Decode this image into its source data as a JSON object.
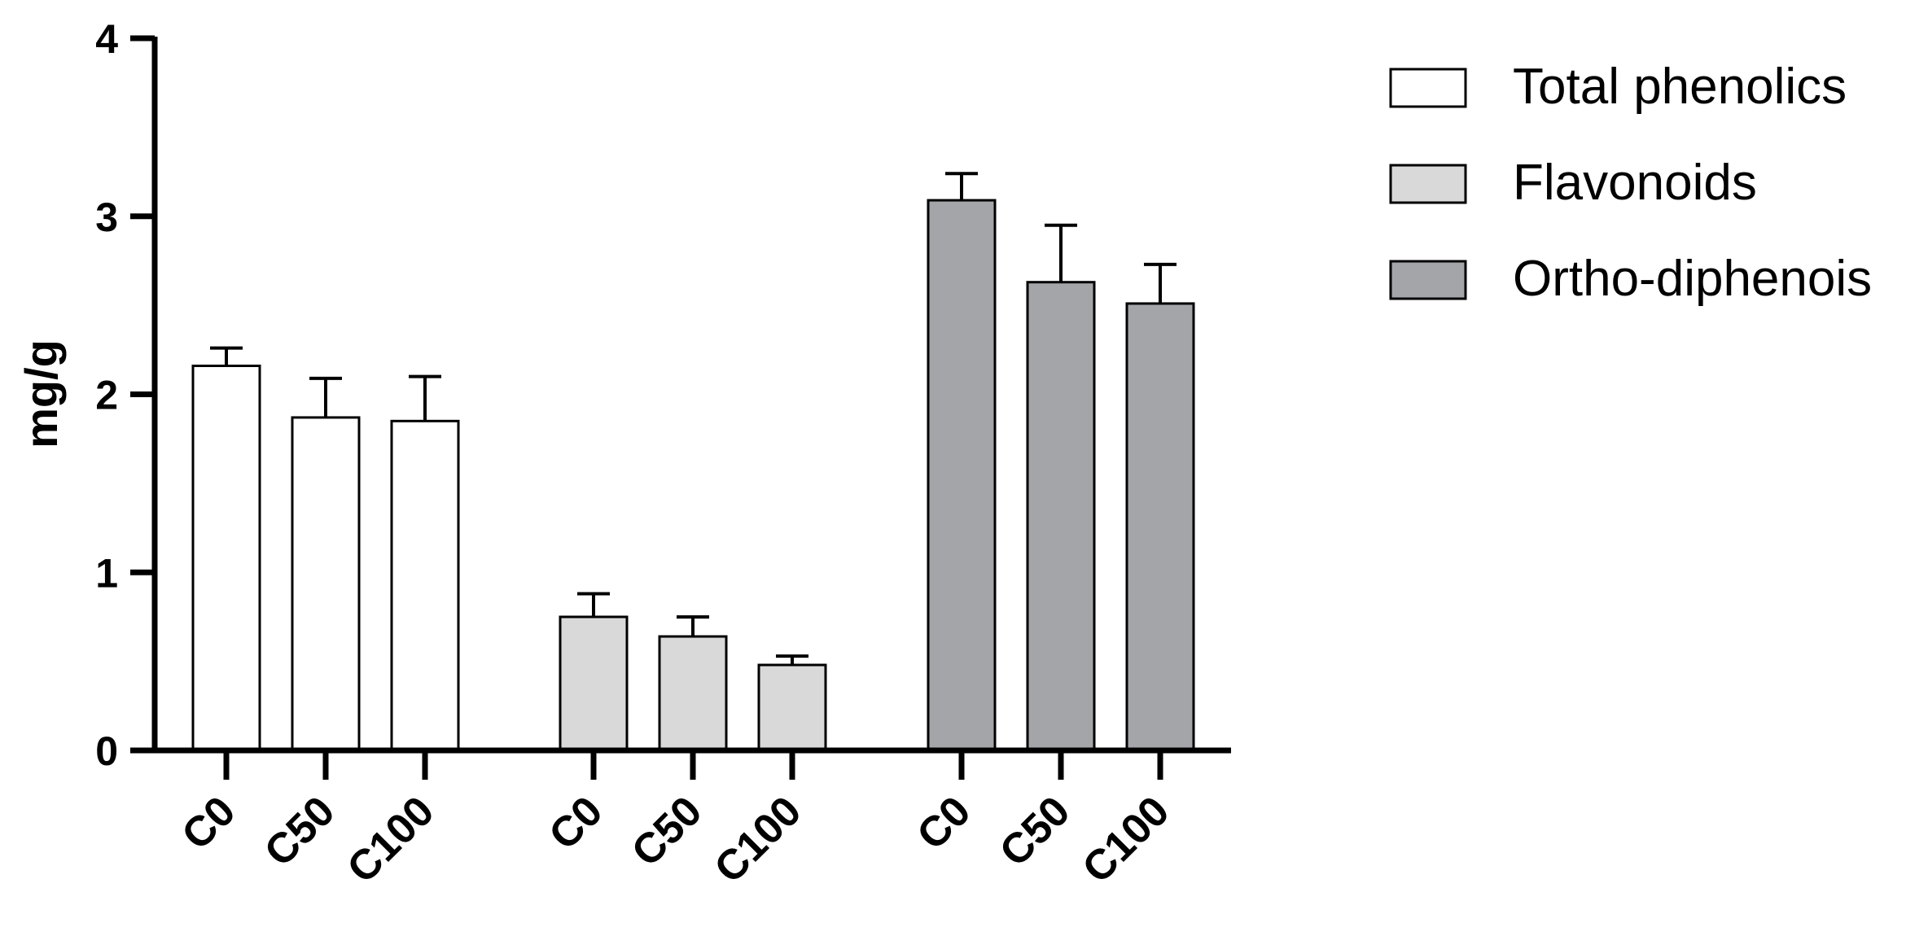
{
  "chart_data": {
    "type": "bar",
    "ylabel": "mg/g",
    "ylim": [
      0,
      4
    ],
    "yticks": [
      "0",
      "1",
      "2",
      "3",
      "4"
    ],
    "categories": [
      "C0",
      "C50",
      "C100"
    ],
    "grid": false,
    "legend_position": "top-right",
    "series": [
      {
        "name": "Total phenolics",
        "color": "#ffffff",
        "values": [
          2.16,
          1.87,
          1.85
        ],
        "errors": [
          0.1,
          0.22,
          0.25
        ]
      },
      {
        "name": "Flavonoids",
        "color": "#d9d9d9",
        "values": [
          0.75,
          0.64,
          0.48
        ],
        "errors": [
          0.13,
          0.11,
          0.05
        ]
      },
      {
        "name": "Ortho-diphenois",
        "color": "#a3a5a9",
        "values": [
          3.09,
          2.63,
          2.51
        ],
        "errors": [
          0.15,
          0.32,
          0.22
        ]
      }
    ]
  }
}
